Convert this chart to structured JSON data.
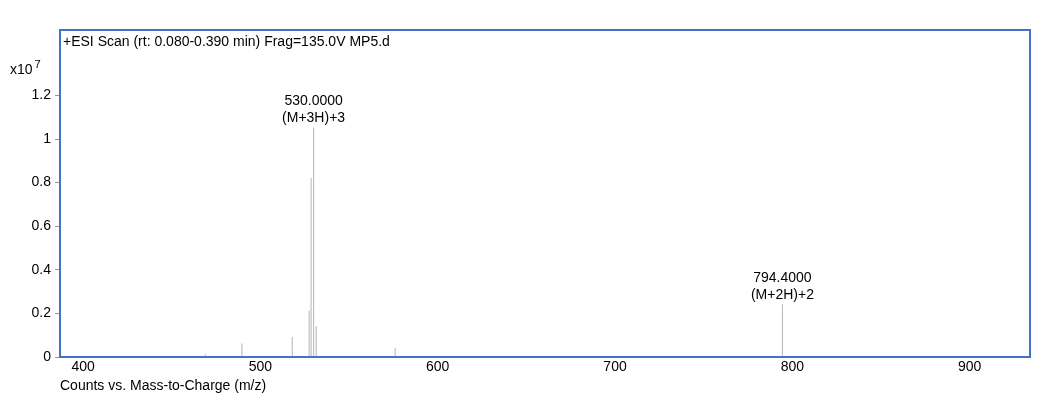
{
  "chart_data": {
    "type": "line",
    "title": "+ESI Scan (rt: 0.080-0.390 min) Frag=135.0V MP5.d",
    "xlabel": "Counts vs. Mass-to-Charge (m/z)",
    "ylabel": "x10$^{7}$",
    "series": [
      {
        "color": "#c0c0c0",
        "x": [
          469,
          469,
          469,
          489.6,
          489.6,
          489.6,
          518,
          518,
          518,
          527.5,
          527.5,
          527.5,
          528.6,
          528.6,
          528.6,
          530,
          530,
          530,
          531.5,
          531.5,
          531.5,
          576,
          576,
          576,
          794.4,
          794.4,
          794.4
        ],
        "values": [
          0,
          0.01,
          0,
          0,
          0.06,
          0,
          0,
          0.09,
          0,
          0,
          0.21,
          0,
          0,
          0.82,
          0,
          0,
          1.05,
          0,
          0,
          0.14,
          0,
          0,
          0.04,
          0,
          0,
          0.24,
          0
        ]
      }
    ],
    "annotations": [
      {
        "text": "530.0000\n(M+3H)+3",
        "x": 530,
        "y": 1.05
      },
      {
        "text": "794.4000\n(M+2H)+2",
        "x": 794.4,
        "y": 0.24
      }
    ],
    "xlim": [
      387,
      934
    ],
    "xticks": [
      400,
      500,
      600,
      700,
      800,
      900
    ],
    "ylim": [
      0,
      1.5
    ],
    "yticks": [
      0,
      0.2,
      0.4,
      0.6,
      0.8,
      1,
      1.2
    ],
    "grid": false,
    "legend": false,
    "marker": "none",
    "line_style": "solid"
  }
}
